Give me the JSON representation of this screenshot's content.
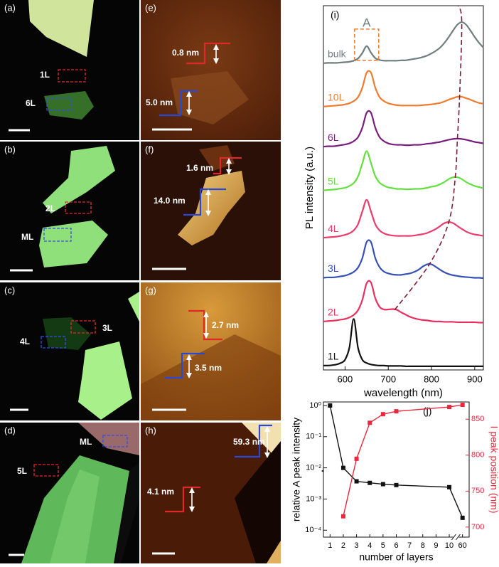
{
  "panels": [
    {
      "label": "(a)",
      "annotations": [
        "1L",
        "6L"
      ]
    },
    {
      "label": "(b)",
      "annotations": [
        "2L",
        "ML"
      ]
    },
    {
      "label": "(c)",
      "annotations": [
        "4L",
        "3L"
      ]
    },
    {
      "label": "(d)",
      "annotations": [
        "ML",
        "5L"
      ]
    },
    {
      "label": "(e)",
      "annotations": [
        "0.8 nm",
        "5.0 nm"
      ]
    },
    {
      "label": "(f)",
      "annotations": [
        "1.6 nm",
        "14.0 nm"
      ]
    },
    {
      "label": "(g)",
      "annotations": [
        "2.7 nm",
        "3.5 nm"
      ]
    },
    {
      "label": "(h)",
      "annotations": [
        "4.1 nm",
        "59.3 nm"
      ]
    }
  ],
  "chart_data": [
    {
      "type": "line",
      "panel_label": "(i)",
      "annotation": "A",
      "x_label": "wavelength (nm)",
      "y_label": "PL intensity (a.u.)",
      "x": [
        550,
        560,
        570,
        580,
        590,
        600,
        610,
        620,
        630,
        640,
        650,
        660,
        670,
        680,
        690,
        700,
        710,
        720,
        730,
        740,
        750,
        760,
        770,
        780,
        790,
        800,
        810,
        820,
        830,
        840,
        850,
        860,
        870,
        880,
        890,
        900,
        910,
        920
      ],
      "xlim": [
        550,
        920
      ],
      "xticks": [
        600,
        700,
        800,
        900
      ],
      "ylim": [
        0,
        10
      ],
      "series": [
        {
          "name": "1L",
          "color": "#111111",
          "values": [
            0.12,
            0.12,
            0.13,
            0.15,
            0.19,
            0.28,
            0.61,
            1.4,
            0.61,
            0.28,
            0.19,
            0.15,
            0.13,
            0.12,
            0.12,
            0.11,
            0.11,
            0.11,
            0.11,
            0.1,
            0.1,
            0.1,
            0.1,
            0.1,
            0.1,
            0.1,
            0.1,
            0.1,
            0.1,
            0.1,
            0.1,
            0.1,
            0.1,
            0.1,
            0.1,
            0.1,
            0.1,
            0.1
          ]
        },
        {
          "name": "2L",
          "color": "#ea2f5e",
          "values": [
            1.33,
            1.34,
            1.35,
            1.36,
            1.38,
            1.4,
            1.44,
            1.51,
            1.64,
            1.92,
            2.38,
            2.4,
            1.97,
            1.73,
            1.66,
            1.66,
            1.67,
            1.65,
            1.58,
            1.52,
            1.46,
            1.42,
            1.39,
            1.37,
            1.36,
            1.34,
            1.33,
            1.33,
            1.32,
            1.32,
            1.32,
            1.31,
            1.31,
            1.31,
            1.31,
            1.31,
            1.3,
            1.3
          ]
        },
        {
          "name": "3L",
          "color": "#3650b8",
          "values": [
            2.53,
            2.54,
            2.54,
            2.55,
            2.57,
            2.59,
            2.63,
            2.69,
            2.81,
            3.07,
            3.51,
            3.51,
            3.07,
            2.82,
            2.7,
            2.65,
            2.62,
            2.61,
            2.61,
            2.63,
            2.65,
            2.69,
            2.75,
            2.84,
            2.9,
            2.9,
            2.83,
            2.75,
            2.68,
            2.63,
            2.6,
            2.58,
            2.56,
            2.55,
            2.54,
            2.53,
            2.53,
            2.52
          ]
        },
        {
          "name": "4L",
          "color": "#ec3a6a",
          "values": [
            3.63,
            3.64,
            3.65,
            3.66,
            3.68,
            3.71,
            3.75,
            3.83,
            4.0,
            4.35,
            4.67,
            4.35,
            4.0,
            3.83,
            3.75,
            3.71,
            3.69,
            3.68,
            3.68,
            3.68,
            3.68,
            3.69,
            3.71,
            3.73,
            3.76,
            3.81,
            3.87,
            3.95,
            4.03,
            4.06,
            4.03,
            3.95,
            3.87,
            3.8,
            3.75,
            3.72,
            3.7,
            3.68
          ]
        },
        {
          "name": "5L",
          "color": "#62e03e",
          "values": [
            4.93,
            4.94,
            4.95,
            4.96,
            4.98,
            5.0,
            5.05,
            5.13,
            5.31,
            5.67,
            6.01,
            5.68,
            5.32,
            5.14,
            5.06,
            5.01,
            4.99,
            4.97,
            4.97,
            4.96,
            4.96,
            4.97,
            4.97,
            4.98,
            5.0,
            5.03,
            5.05,
            5.1,
            5.16,
            5.24,
            5.29,
            5.29,
            5.24,
            5.16,
            5.1,
            5.05,
            5.02,
            4.99
          ]
        },
        {
          "name": "6L",
          "color": "#7a1e7e",
          "values": [
            6.13,
            6.14,
            6.14,
            6.15,
            6.17,
            6.19,
            6.22,
            6.28,
            6.39,
            6.65,
            7.06,
            7.06,
            6.65,
            6.39,
            6.28,
            6.22,
            6.19,
            6.18,
            6.18,
            6.17,
            6.17,
            6.18,
            6.18,
            6.19,
            6.21,
            6.22,
            6.24,
            6.26,
            6.29,
            6.32,
            6.34,
            6.35,
            6.34,
            6.32,
            6.29,
            6.26,
            6.24,
            6.22
          ]
        },
        {
          "name": "10L",
          "color": "#f07a2e",
          "values": [
            7.23,
            7.24,
            7.25,
            7.26,
            7.27,
            7.29,
            7.32,
            7.38,
            7.49,
            7.75,
            8.16,
            8.16,
            7.75,
            7.49,
            7.38,
            7.32,
            7.29,
            7.27,
            7.26,
            7.26,
            7.26,
            7.26,
            7.26,
            7.27,
            7.28,
            7.29,
            7.31,
            7.33,
            7.37,
            7.42,
            7.46,
            7.5,
            7.5,
            7.46,
            7.42,
            7.37,
            7.33,
            7.31
          ]
        },
        {
          "name": "bulk",
          "color": "#6f7d7d",
          "values": [
            8.42,
            8.43,
            8.43,
            8.43,
            8.44,
            8.45,
            8.46,
            8.49,
            8.55,
            8.7,
            8.89,
            8.71,
            8.56,
            8.51,
            8.49,
            8.49,
            8.49,
            8.49,
            8.5,
            8.5,
            8.52,
            8.54,
            8.56,
            8.59,
            8.63,
            8.69,
            8.76,
            8.85,
            8.98,
            9.14,
            9.32,
            9.48,
            9.55,
            9.48,
            9.32,
            9.14,
            8.98,
            8.85
          ]
        },
        {
          "color": "#7a1f35",
          "dash": true,
          "x": [
            715,
            795,
            840,
            855,
            860,
            865,
            870,
            862
          ],
          "values": [
            1.65,
            2.9,
            4.06,
            5.29,
            6.35,
            7.5,
            9.55,
            10
          ]
        }
      ]
    },
    {
      "type": "line",
      "panel_label": "(j)",
      "x_label": "number of layers",
      "y_label": "relative A peak intensity",
      "y2_label": "I peak position (nm)",
      "xlim": [
        0.5,
        60.5
      ],
      "xticks": [
        1,
        2,
        3,
        4,
        5,
        6,
        7,
        8,
        9,
        10,
        60
      ],
      "x_break": true,
      "yscale": "log",
      "ylim": [
        6e-05,
        1.3
      ],
      "yticks": [
        {
          "value": 1,
          "label": "10⁰"
        },
        {
          "value": 0.1,
          "label": "10⁻¹"
        },
        {
          "value": 0.01,
          "label": "10⁻²"
        },
        {
          "value": 0.001,
          "label": "10⁻³"
        },
        {
          "value": 0.0001,
          "label": "10⁻⁴"
        }
      ],
      "y2lim": [
        686,
        874
      ],
      "y2ticks": [
        700,
        750,
        800,
        850
      ],
      "series": [
        {
          "color": "#111111",
          "x": [
            1,
            2,
            3,
            4,
            5,
            6,
            10,
            60
          ],
          "values": [
            1,
            0.01,
            0.0037,
            0.0033,
            0.003,
            0.0028,
            0.0024,
            0.00025
          ]
        },
        {
          "color": "#e8283c",
          "axis": "y2",
          "x": [
            2,
            3,
            4,
            5,
            6,
            10,
            60
          ],
          "values": [
            715,
            795,
            845,
            857,
            861,
            867,
            870
          ]
        }
      ]
    }
  ]
}
